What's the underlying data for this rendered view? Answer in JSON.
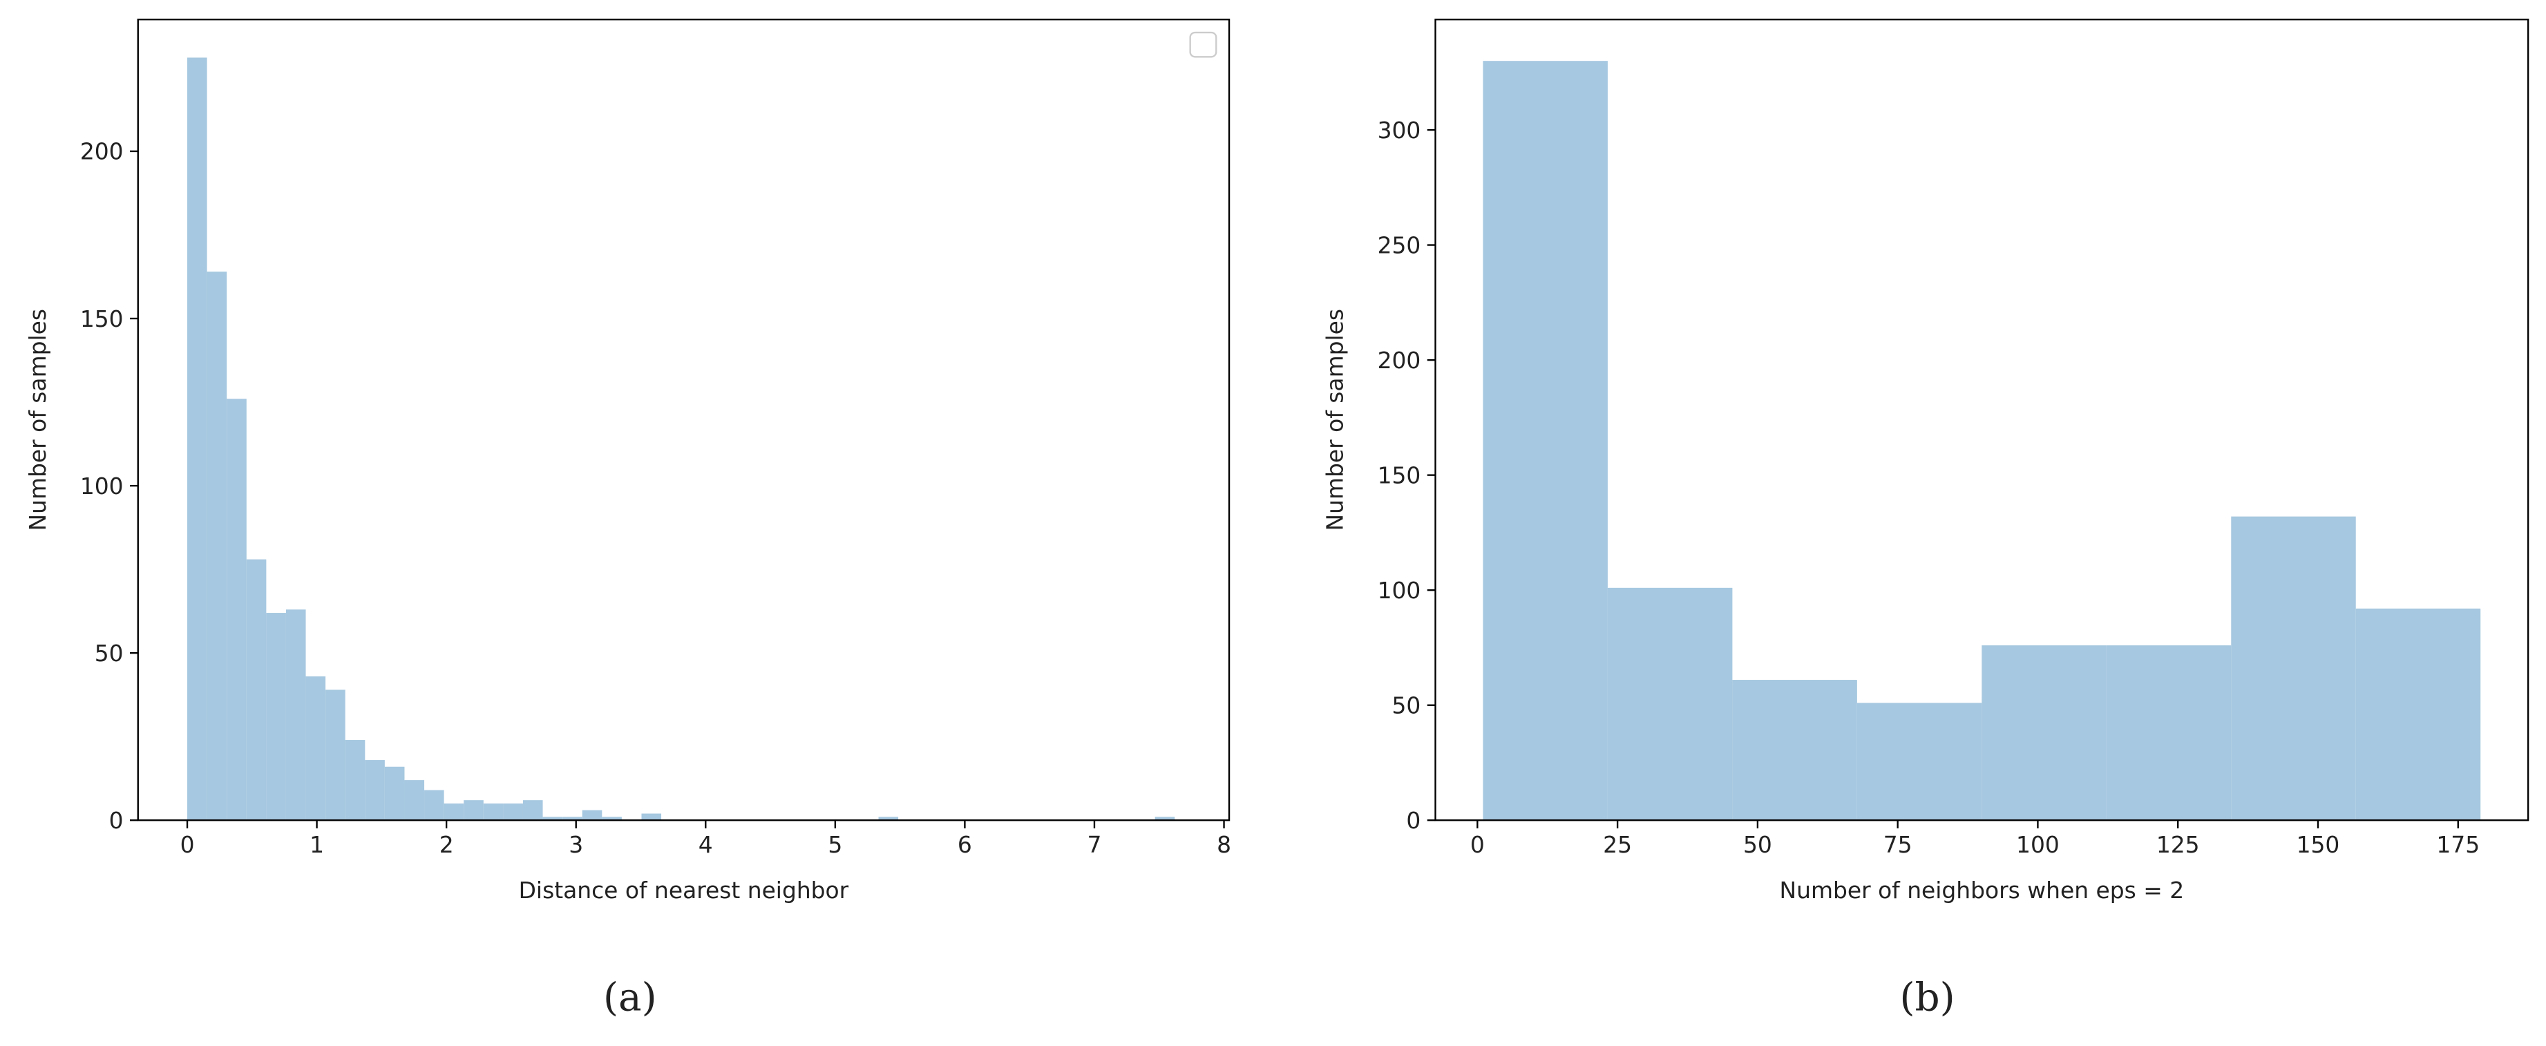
{
  "chart_data": [
    {
      "type": "histogram",
      "caption": "(a)",
      "xlabel": "Distance of nearest neighbor",
      "ylabel": "Number of samples",
      "color": "#a6c8e0",
      "bins": [
        0,
        0.1524,
        0.3048,
        0.4572,
        0.6096,
        0.762,
        0.9144,
        1.0668,
        1.2192,
        1.3716,
        1.524,
        1.6764,
        1.8288,
        1.9812,
        2.1336,
        2.286,
        2.4384,
        2.5908,
        2.7432,
        2.8956,
        3.048,
        3.2004,
        3.3528,
        3.5052,
        3.6576,
        3.81,
        3.9624,
        4.1148,
        4.2672,
        4.4196,
        4.572,
        4.7244,
        4.8768,
        5.0292,
        5.1816,
        5.334,
        5.4864,
        5.6388,
        5.7912,
        5.9436,
        6.096,
        6.2484,
        6.4008,
        6.5532,
        6.7056,
        6.858,
        7.0104,
        7.1628,
        7.3152,
        7.4676,
        7.62
      ],
      "values": [
        228,
        164,
        126,
        78,
        62,
        63,
        43,
        39,
        24,
        18,
        16,
        12,
        9,
        5,
        6,
        5,
        5,
        6,
        1,
        1,
        3,
        1,
        0,
        2,
        0,
        0,
        0,
        0,
        0,
        0,
        0,
        0,
        0,
        0,
        0,
        1,
        0,
        0,
        0,
        0,
        0,
        0,
        0,
        0,
        0,
        0,
        0,
        0,
        0,
        1
      ],
      "xlim": [
        -0.38,
        8.04
      ],
      "ylim": [
        0,
        239.4
      ],
      "xticks": [
        0,
        1,
        2,
        3,
        4,
        5,
        6,
        7,
        8
      ],
      "yticks": [
        0,
        50,
        100,
        150,
        200
      ]
    },
    {
      "type": "histogram",
      "caption": "(b)",
      "xlabel": "Number of neighbors when eps = 2",
      "ylabel": "Number of samples",
      "color": "#a6c8e0",
      "bins": [
        1,
        23.25,
        45.5,
        67.75,
        90,
        112.25,
        134.5,
        156.75,
        179
      ],
      "values": [
        330,
        101,
        61,
        51,
        76,
        76,
        132,
        92
      ],
      "xlim": [
        -7.5,
        187.5
      ],
      "ylim": [
        0,
        348
      ],
      "xticks": [
        0,
        25,
        50,
        75,
        100,
        125,
        150,
        175
      ],
      "yticks": [
        0,
        50,
        100,
        150,
        200,
        250,
        300
      ]
    }
  ]
}
